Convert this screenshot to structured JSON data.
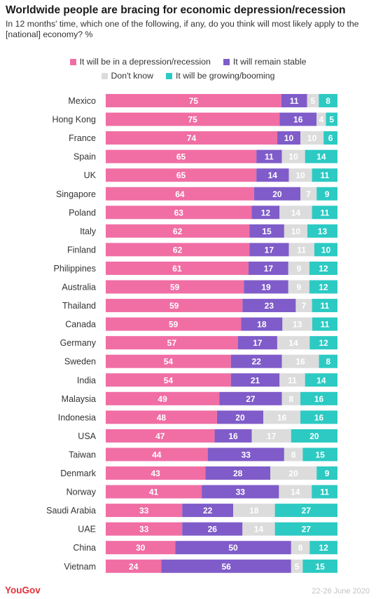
{
  "title": "Worldwide people are bracing for economic depression/recession",
  "subtitle": "In 12 months' time, which one of the following, if any, do you think will most likely apply to the [national] economy? %",
  "footer": {
    "brand": "YouGov",
    "date": "22-26 June 2020"
  },
  "chart_data": {
    "type": "bar",
    "orientation": "horizontal",
    "stacked": true,
    "xlim": [
      0,
      100
    ],
    "legend_placement": "top",
    "grid": false,
    "categories": [
      "Mexico",
      "Hong Kong",
      "France",
      "Spain",
      "UK",
      "Singapore",
      "Poland",
      "Italy",
      "Finland",
      "Philippines",
      "Australia",
      "Thailand",
      "Canada",
      "Germany",
      "Sweden",
      "India",
      "Malaysia",
      "Indonesia",
      "USA",
      "Taiwan",
      "Denmark",
      "Norway",
      "Saudi Arabia",
      "UAE",
      "China",
      "Vietnam"
    ],
    "series": [
      {
        "name": "It will be in a depression/recession",
        "color": "#f06ea4",
        "values": [
          75,
          75,
          74,
          65,
          65,
          64,
          63,
          62,
          62,
          61,
          59,
          59,
          59,
          57,
          54,
          54,
          49,
          48,
          47,
          44,
          43,
          41,
          33,
          33,
          30,
          24
        ]
      },
      {
        "name": "It will remain stable",
        "color": "#7f5cc9",
        "values": [
          11,
          16,
          10,
          11,
          14,
          20,
          12,
          15,
          17,
          17,
          19,
          23,
          18,
          17,
          22,
          21,
          27,
          20,
          16,
          33,
          28,
          33,
          22,
          26,
          50,
          56
        ]
      },
      {
        "name": "Don't know",
        "color": "#dcdcdc",
        "values": [
          5,
          4,
          10,
          10,
          10,
          7,
          14,
          10,
          11,
          9,
          9,
          7,
          13,
          14,
          16,
          11,
          8,
          16,
          17,
          8,
          20,
          14,
          18,
          14,
          8,
          5
        ]
      },
      {
        "name": "It will be growing/booming",
        "color": "#2ccac3",
        "values": [
          8,
          5,
          6,
          14,
          11,
          9,
          11,
          13,
          10,
          12,
          12,
          11,
          11,
          12,
          8,
          14,
          16,
          16,
          20,
          15,
          9,
          11,
          27,
          27,
          12,
          15
        ]
      }
    ]
  }
}
